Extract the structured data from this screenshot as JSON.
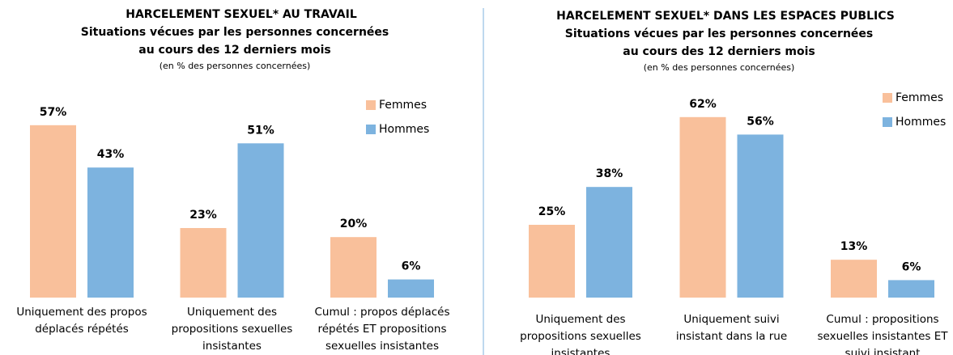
{
  "chart_data": [
    {
      "type": "bar",
      "title": "HARCELEMENT SEXUEL* AU TRAVAIL",
      "subtitle": [
        "Situations vécues par les personnes concernées",
        "au cours des 12 derniers mois"
      ],
      "note": "(en % des personnes concernées)",
      "categories": [
        [
          "Uniquement des propos",
          "déplacés répétés"
        ],
        [
          "Uniquement des",
          "propositions sexuelles",
          "insistantes"
        ],
        [
          "Cumul : propos déplacés",
          "répétés ET propositions",
          "sexuelles insistantes"
        ]
      ],
      "series": [
        {
          "name": "Femmes",
          "color": "#f9c09b",
          "values": [
            57,
            23,
            20
          ],
          "value_labels": [
            "57%",
            "23%",
            "20%"
          ]
        },
        {
          "name": "Hommes",
          "color": "#7db3df",
          "values": [
            43,
            51,
            6
          ],
          "value_labels": [
            "43%",
            "51%",
            "6%"
          ]
        }
      ]
    },
    {
      "type": "bar",
      "title": "HARCELEMENT SEXUEL* DANS LES ESPACES PUBLICS",
      "subtitle": [
        "Situations vécues par les personnes concernées",
        "au cours des 12 derniers mois"
      ],
      "note": "(en % des personnes concernées)",
      "categories": [
        [
          "Uniquement des",
          "propositions sexuelles",
          "insistantes"
        ],
        [
          "Uniquement suivi",
          "insistant dans la rue"
        ],
        [
          "Cumul : propositions",
          "sexuelles insistantes ET",
          "suivi insistant"
        ]
      ],
      "series": [
        {
          "name": "Femmes",
          "color": "#f9c09b",
          "values": [
            25,
            62,
            13
          ],
          "value_labels": [
            "25%",
            "62%",
            "13%"
          ]
        },
        {
          "name": "Hommes",
          "color": "#7db3df",
          "values": [
            38,
            56,
            6
          ],
          "value_labels": [
            "38%",
            "56%",
            "6%"
          ]
        }
      ]
    }
  ]
}
